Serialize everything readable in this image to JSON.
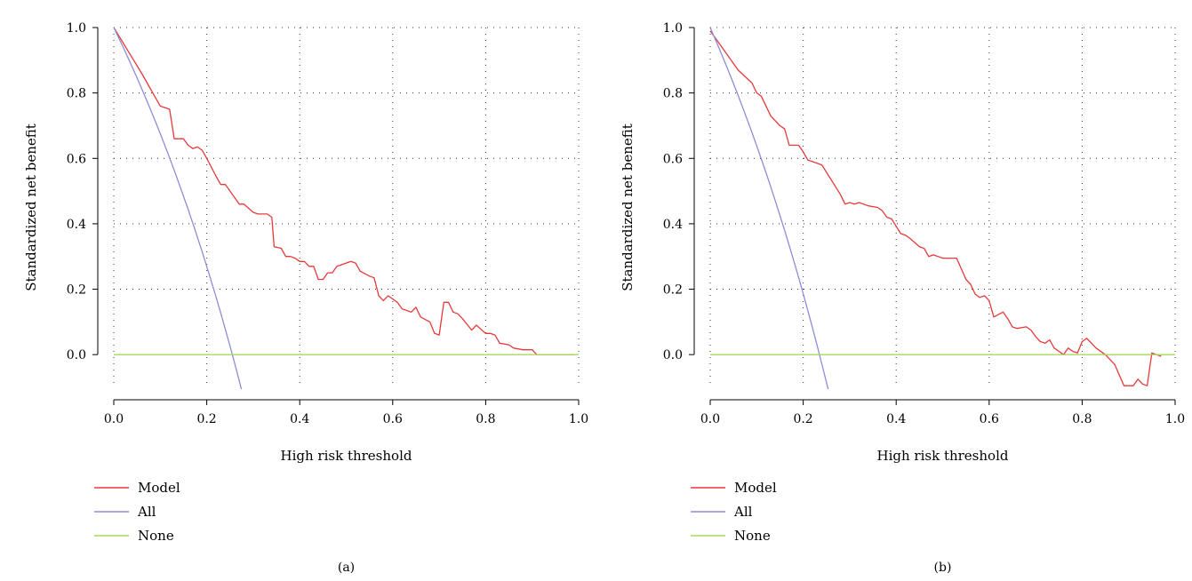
{
  "chart_data": [
    {
      "type": "line",
      "caption": "(a)",
      "xlabel": "High risk threshold",
      "ylabel": "Standardized net benefit",
      "xlim": [
        0.0,
        1.0
      ],
      "ylim": [
        -0.1,
        1.0
      ],
      "xticks": [
        "0.0",
        "0.2",
        "0.4",
        "0.6",
        "0.8",
        "1.0"
      ],
      "yticks": [
        "0.0",
        "0.2",
        "0.4",
        "0.6",
        "0.8",
        "1.0"
      ],
      "grid": true,
      "legend_position": "bottom-left",
      "series": [
        {
          "name": "Model",
          "color": "#e8393a",
          "points": [
            [
              0.0,
              1.0
            ],
            [
              0.03,
              0.93
            ],
            [
              0.06,
              0.86
            ],
            [
              0.08,
              0.81
            ],
            [
              0.1,
              0.76
            ],
            [
              0.12,
              0.75
            ],
            [
              0.13,
              0.66
            ],
            [
              0.15,
              0.66
            ],
            [
              0.16,
              0.64
            ],
            [
              0.17,
              0.63
            ],
            [
              0.18,
              0.635
            ],
            [
              0.19,
              0.625
            ],
            [
              0.2,
              0.6
            ],
            [
              0.22,
              0.545
            ],
            [
              0.23,
              0.52
            ],
            [
              0.24,
              0.52
            ],
            [
              0.27,
              0.46
            ],
            [
              0.28,
              0.46
            ],
            [
              0.3,
              0.435
            ],
            [
              0.31,
              0.43
            ],
            [
              0.32,
              0.43
            ],
            [
              0.33,
              0.43
            ],
            [
              0.34,
              0.42
            ],
            [
              0.345,
              0.33
            ],
            [
              0.36,
              0.325
            ],
            [
              0.37,
              0.3
            ],
            [
              0.38,
              0.3
            ],
            [
              0.39,
              0.295
            ],
            [
              0.4,
              0.285
            ],
            [
              0.41,
              0.285
            ],
            [
              0.42,
              0.27
            ],
            [
              0.43,
              0.27
            ],
            [
              0.44,
              0.23
            ],
            [
              0.45,
              0.23
            ],
            [
              0.46,
              0.25
            ],
            [
              0.47,
              0.25
            ],
            [
              0.48,
              0.27
            ],
            [
              0.5,
              0.28
            ],
            [
              0.51,
              0.285
            ],
            [
              0.52,
              0.28
            ],
            [
              0.53,
              0.255
            ],
            [
              0.55,
              0.24
            ],
            [
              0.56,
              0.235
            ],
            [
              0.57,
              0.18
            ],
            [
              0.58,
              0.165
            ],
            [
              0.59,
              0.18
            ],
            [
              0.61,
              0.16
            ],
            [
              0.62,
              0.14
            ],
            [
              0.64,
              0.13
            ],
            [
              0.65,
              0.145
            ],
            [
              0.66,
              0.115
            ],
            [
              0.68,
              0.1
            ],
            [
              0.69,
              0.065
            ],
            [
              0.7,
              0.06
            ],
            [
              0.71,
              0.16
            ],
            [
              0.72,
              0.16
            ],
            [
              0.73,
              0.13
            ],
            [
              0.74,
              0.125
            ],
            [
              0.75,
              0.11
            ],
            [
              0.77,
              0.075
            ],
            [
              0.78,
              0.09
            ],
            [
              0.8,
              0.065
            ],
            [
              0.81,
              0.065
            ],
            [
              0.82,
              0.06
            ],
            [
              0.83,
              0.035
            ],
            [
              0.85,
              0.03
            ],
            [
              0.86,
              0.02
            ],
            [
              0.88,
              0.015
            ],
            [
              0.9,
              0.015
            ],
            [
              0.91,
              0.0
            ],
            [
              0.95,
              0.0
            ],
            [
              0.99,
              0.0
            ]
          ]
        },
        {
          "name": "All",
          "color": "#8d8dd6",
          "prevalence": 0.255
        },
        {
          "name": "None",
          "color": "#a8d85a",
          "points": [
            [
              0.0,
              0.0
            ],
            [
              1.0,
              0.0
            ]
          ]
        }
      ]
    },
    {
      "type": "line",
      "caption": "(b)",
      "xlabel": "High risk threshold",
      "ylabel": "Standardized net benefit",
      "xlim": [
        0.0,
        1.0
      ],
      "ylim": [
        -0.1,
        1.0
      ],
      "xticks": [
        "0.0",
        "0.2",
        "0.4",
        "0.6",
        "0.8",
        "1.0"
      ],
      "yticks": [
        "0.0",
        "0.2",
        "0.4",
        "0.6",
        "0.8",
        "1.0"
      ],
      "grid": true,
      "legend_position": "bottom-left",
      "series": [
        {
          "name": "Model",
          "color": "#e8393a",
          "points": [
            [
              0.0,
              0.99
            ],
            [
              0.03,
              0.93
            ],
            [
              0.06,
              0.87
            ],
            [
              0.09,
              0.83
            ],
            [
              0.1,
              0.8
            ],
            [
              0.11,
              0.79
            ],
            [
              0.13,
              0.73
            ],
            [
              0.15,
              0.7
            ],
            [
              0.16,
              0.69
            ],
            [
              0.17,
              0.64
            ],
            [
              0.19,
              0.64
            ],
            [
              0.2,
              0.62
            ],
            [
              0.21,
              0.595
            ],
            [
              0.23,
              0.585
            ],
            [
              0.24,
              0.58
            ],
            [
              0.26,
              0.535
            ],
            [
              0.28,
              0.49
            ],
            [
              0.29,
              0.46
            ],
            [
              0.3,
              0.465
            ],
            [
              0.31,
              0.46
            ],
            [
              0.32,
              0.465
            ],
            [
              0.33,
              0.46
            ],
            [
              0.34,
              0.455
            ],
            [
              0.36,
              0.45
            ],
            [
              0.37,
              0.44
            ],
            [
              0.38,
              0.42
            ],
            [
              0.39,
              0.415
            ],
            [
              0.41,
              0.37
            ],
            [
              0.42,
              0.365
            ],
            [
              0.43,
              0.355
            ],
            [
              0.45,
              0.33
            ],
            [
              0.46,
              0.325
            ],
            [
              0.47,
              0.3
            ],
            [
              0.48,
              0.305
            ],
            [
              0.49,
              0.3
            ],
            [
              0.5,
              0.295
            ],
            [
              0.53,
              0.295
            ],
            [
              0.55,
              0.23
            ],
            [
              0.56,
              0.215
            ],
            [
              0.57,
              0.185
            ],
            [
              0.58,
              0.175
            ],
            [
              0.59,
              0.18
            ],
            [
              0.6,
              0.165
            ],
            [
              0.61,
              0.115
            ],
            [
              0.63,
              0.13
            ],
            [
              0.64,
              0.11
            ],
            [
              0.65,
              0.085
            ],
            [
              0.66,
              0.08
            ],
            [
              0.68,
              0.085
            ],
            [
              0.69,
              0.075
            ],
            [
              0.7,
              0.055
            ],
            [
              0.71,
              0.04
            ],
            [
              0.72,
              0.035
            ],
            [
              0.73,
              0.045
            ],
            [
              0.74,
              0.02
            ],
            [
              0.75,
              0.01
            ],
            [
              0.76,
              0.0
            ],
            [
              0.77,
              0.02
            ],
            [
              0.78,
              0.01
            ],
            [
              0.79,
              0.005
            ],
            [
              0.8,
              0.04
            ],
            [
              0.81,
              0.05
            ],
            [
              0.82,
              0.035
            ],
            [
              0.83,
              0.02
            ],
            [
              0.85,
              0.0
            ],
            [
              0.87,
              -0.03
            ],
            [
              0.89,
              -0.095
            ],
            [
              0.91,
              -0.095
            ],
            [
              0.92,
              -0.075
            ],
            [
              0.93,
              -0.09
            ],
            [
              0.94,
              -0.095
            ],
            [
              0.95,
              0.005
            ],
            [
              0.96,
              0.0
            ],
            [
              0.97,
              -0.005
            ]
          ]
        },
        {
          "name": "All",
          "color": "#8d8dd6",
          "prevalence": 0.235
        },
        {
          "name": "None",
          "color": "#a8d85a",
          "points": [
            [
              0.0,
              0.0
            ],
            [
              1.0,
              0.0
            ]
          ]
        }
      ]
    }
  ]
}
